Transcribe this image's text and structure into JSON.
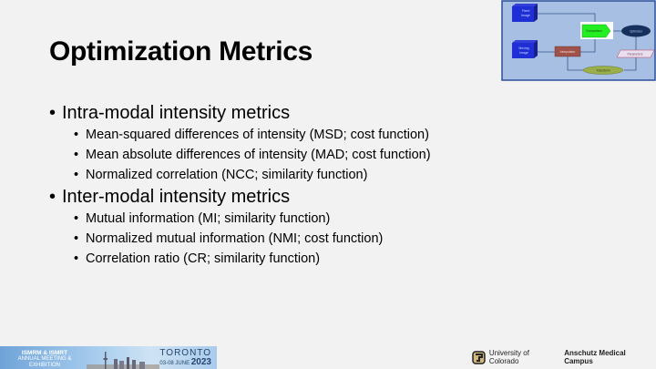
{
  "slide": {
    "title": "Optimization Metrics",
    "sections": [
      {
        "label": "Intra-modal intensity metrics",
        "items": [
          "Mean-squared differences of intensity (MSD; cost function)",
          "Mean absolute differences of intensity (MAD; cost function)",
          "Normalized correlation (NCC; similarity function)"
        ]
      },
      {
        "label": "Inter-modal intensity metrics",
        "items": [
          "Mutual information (MI; similarity function)",
          "Normalized mutual information (NMI; cost function)",
          "Correlation ratio (CR; similarity function)"
        ]
      }
    ]
  },
  "diagram": {
    "fixed_image": [
      "Fixed",
      "Image"
    ],
    "moving_image": [
      "Moving",
      "Image"
    ],
    "interpolator": "Interpolator",
    "comparison": "Comparison",
    "optimizer": "Optimizer",
    "parameters": "Parameters",
    "transform": "Transform"
  },
  "footer": {
    "conference_org": "ISMRM & ISMRT",
    "conference_event": "ANNUAL MEETING & EXHIBITION",
    "city": "TORONTO",
    "dates": "03-08 JUNE",
    "year": "2023",
    "university": "University of Colorado",
    "campus": "Anschutz Medical Campus"
  },
  "colors": {
    "background": "#f2f2f2",
    "comparison": "#22ee22",
    "interpolator": "#a0524a",
    "optimizer": "#16305e",
    "transform": "#9aae4a"
  }
}
